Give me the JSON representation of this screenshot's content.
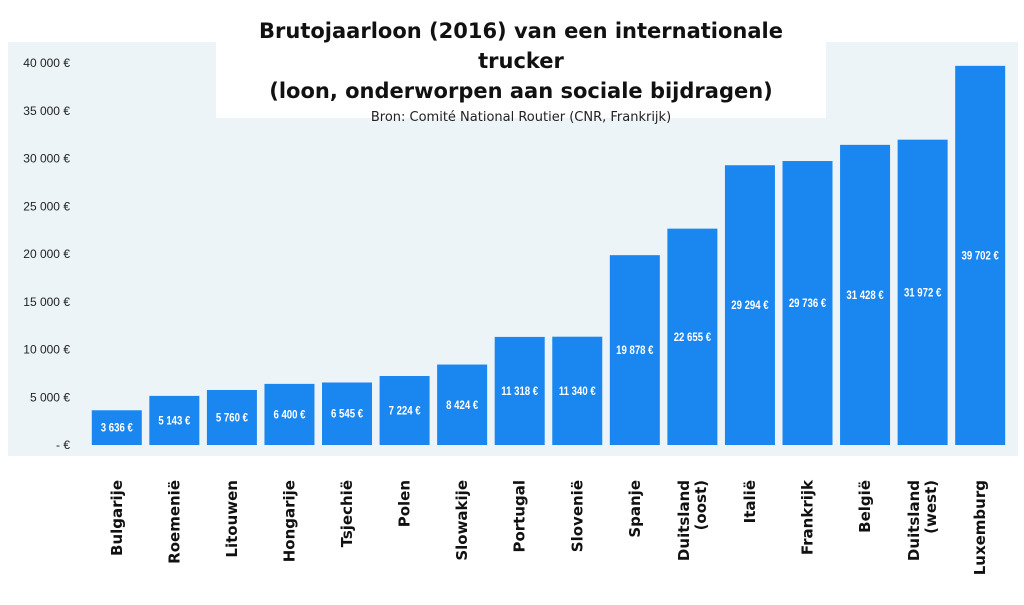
{
  "chart_data": {
    "type": "bar",
    "title_line1": "Brutojaarloon (2016) van een internationale trucker",
    "title_line2": "(loon, onderworpen aan sociale bijdragen)",
    "subtitle": "Bron: Comité National Routier (CNR, Frankrijk)",
    "categories": [
      [
        "Bulgarije"
      ],
      [
        "Roemenië"
      ],
      [
        "Litouwen"
      ],
      [
        "Hongarije"
      ],
      [
        "Tsjechië"
      ],
      [
        "Polen"
      ],
      [
        "Slowakije"
      ],
      [
        "Portugal"
      ],
      [
        "Slovenië"
      ],
      [
        "Spanje"
      ],
      [
        "Duitsland",
        "(oost)"
      ],
      [
        "Italië"
      ],
      [
        "Frankrijk"
      ],
      [
        "België"
      ],
      [
        "Duitsland",
        "(west)"
      ],
      [
        "Luxemburg"
      ]
    ],
    "values": [
      3636,
      5143,
      5760,
      6400,
      6545,
      7224,
      8424,
      11318,
      11340,
      19878,
      22655,
      29294,
      29736,
      31428,
      31972,
      39702
    ],
    "value_labels": [
      "3 636 €",
      "5 143 €",
      "5 760 €",
      "6 400 €",
      "6 545 €",
      "7 224 €",
      "8 424 €",
      "11 318 €",
      "11 340 €",
      "19 878 €",
      "22 655 €",
      "29 294 €",
      "29 736 €",
      "31 428 €",
      "31 972 €",
      "39 702 €"
    ],
    "ylim": [
      0,
      40000
    ],
    "yticks": [
      0,
      5000,
      10000,
      15000,
      20000,
      25000,
      30000,
      35000,
      40000
    ],
    "ytick_labels": [
      "-  €",
      "5 000 €",
      "10 000 €",
      "15 000 €",
      "20 000 €",
      "25 000 €",
      "30 000 €",
      "35 000 €",
      "40 000 €"
    ],
    "grid": false,
    "bar_color": "#1a86f0",
    "background_color": "#ecf4f7"
  }
}
